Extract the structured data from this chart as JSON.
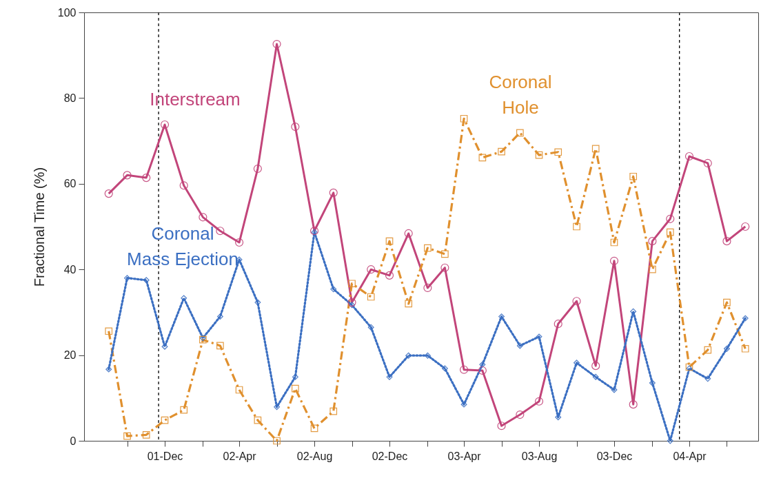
{
  "chart_data": {
    "type": "line",
    "ylabel": "Fractional Time (%)",
    "x": [
      "2001-09",
      "2001-10",
      "2001-11",
      "2001-12",
      "2002-01",
      "2002-02",
      "2002-03",
      "2002-04",
      "2002-05",
      "2002-06",
      "2002-07",
      "2002-08",
      "2002-09",
      "2002-10",
      "2002-11",
      "2002-12",
      "2003-01",
      "2003-02",
      "2003-03",
      "2003-04",
      "2003-05",
      "2003-06",
      "2003-07",
      "2003-08",
      "2003-09",
      "2003-10",
      "2003-11",
      "2003-12",
      "2004-01",
      "2004-02",
      "2004-03",
      "2004-04",
      "2004-05",
      "2004-06",
      "2004-07"
    ],
    "series": [
      {
        "name": "Interstream",
        "color": "#c2457a",
        "marker": "circle",
        "line_style": "solid",
        "values": [
          57.7,
          62,
          61.4,
          73.8,
          59.6,
          52.2,
          49,
          46.3,
          63.5,
          92.6,
          73.3,
          49,
          57.9,
          32.3,
          40,
          38.6,
          48.4,
          35.7,
          40.4,
          16.6,
          16.4,
          3.5,
          6.1,
          9.2,
          27.3,
          32.6,
          17.5,
          42,
          8.5,
          46.6,
          51.8,
          66.4,
          64.8,
          46.6,
          50
        ]
      },
      {
        "name": "Coronal Hole",
        "color": "#e0902e",
        "marker": "square",
        "line_style": "dashed",
        "values": [
          25.6,
          1.1,
          1.4,
          4.8,
          7.2,
          23.6,
          22.2,
          11.9,
          4.8,
          0,
          12.2,
          2.9,
          6.9,
          36.7,
          33.6,
          46.6,
          32,
          45,
          43.6,
          75.2,
          66.1,
          67.5,
          71.9,
          66.7,
          67.4,
          50,
          68.2,
          46.3,
          61.7,
          40,
          48.7,
          17.2,
          21.2,
          32.3,
          21.5
        ]
      },
      {
        "name": "Coronal Mass Ejection",
        "color": "#3b6fc2",
        "marker": "diamond",
        "line_style": "dotted",
        "values": [
          16.7,
          38,
          37.5,
          22,
          33.3,
          24,
          29,
          42.3,
          32.3,
          7.9,
          14.9,
          48.7,
          35.4,
          31.7,
          26.5,
          14.9,
          19.9,
          19.9,
          16.9,
          8.5,
          17.8,
          29,
          22.2,
          24.3,
          5.5,
          18.2,
          14.9,
          11.9,
          30.2,
          13.5,
          0,
          16.9,
          14.5,
          21.5,
          28.6
        ]
      }
    ],
    "xlim": [
      "2001-07-23",
      "2004-07-22"
    ],
    "xticks": [
      {
        "value": "2001-10",
        "label": null
      },
      {
        "value": "2001-12",
        "label": "01-Dec"
      },
      {
        "value": "2002-02",
        "label": null
      },
      {
        "value": "2002-04",
        "label": "02-Apr"
      },
      {
        "value": "2002-06",
        "label": null
      },
      {
        "value": "2002-08",
        "label": "02-Aug"
      },
      {
        "value": "2002-10",
        "label": null
      },
      {
        "value": "2002-12",
        "label": "02-Dec"
      },
      {
        "value": "2003-02",
        "label": null
      },
      {
        "value": "2003-04",
        "label": "03-Apr"
      },
      {
        "value": "2003-06",
        "label": null
      },
      {
        "value": "2003-08",
        "label": "03-Aug"
      },
      {
        "value": "2003-10",
        "label": null
      },
      {
        "value": "2003-12",
        "label": "03-Dec"
      },
      {
        "value": "2004-02",
        "label": null
      },
      {
        "value": "2004-04",
        "label": "04-Apr"
      },
      {
        "value": "2004-06",
        "label": null
      }
    ],
    "ylim": [
      0,
      100
    ],
    "yticks": [
      0,
      20,
      40,
      60,
      80,
      100
    ],
    "ref_lines": [
      {
        "axis": "x",
        "value": "2001-11-21",
        "color": "#000000",
        "line_style": "dashed"
      },
      {
        "axis": "x",
        "value": "2004-03-16",
        "color": "#000000",
        "line_style": "dashed"
      }
    ],
    "grid": false
  }
}
